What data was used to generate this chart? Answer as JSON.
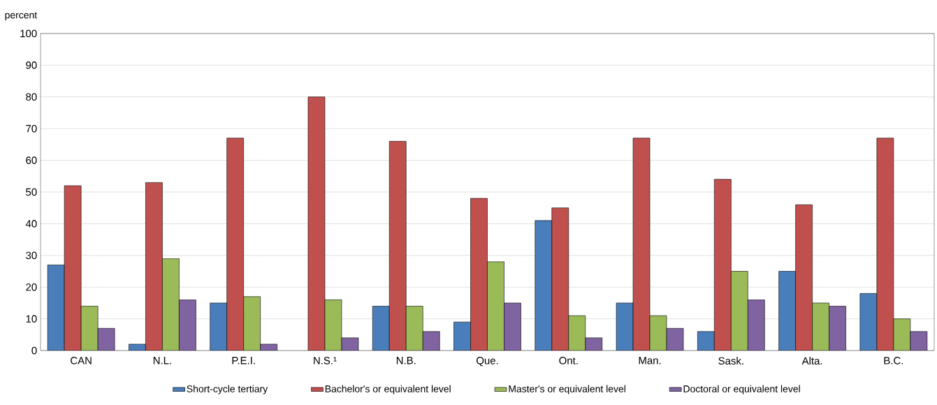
{
  "chart_data": {
    "type": "bar",
    "ylabel": "percent",
    "categories": [
      "CAN",
      "N.L.",
      "P.E.I.",
      "N.S.¹",
      "N.B.",
      "Que.",
      "Ont.",
      "Man.",
      "Sask.",
      "Alta.",
      "B.C."
    ],
    "series": [
      {
        "name": "Short-cycle tertiary",
        "color": "#4a7ebb",
        "values": [
          27,
          2,
          15,
          null,
          14,
          9,
          41,
          15,
          6,
          25,
          18
        ]
      },
      {
        "name": "Bachelor's or equivalent level",
        "color": "#c0504d",
        "values": [
          52,
          53,
          67,
          80,
          66,
          48,
          45,
          67,
          54,
          46,
          67
        ]
      },
      {
        "name": "Master's or equivalent level",
        "color": "#9bbb59",
        "values": [
          14,
          29,
          17,
          16,
          14,
          28,
          11,
          11,
          25,
          15,
          10
        ]
      },
      {
        "name": "Doctoral or equivalent level",
        "color": "#8064a2",
        "values": [
          7,
          16,
          2,
          4,
          6,
          15,
          4,
          7,
          16,
          14,
          6
        ]
      }
    ],
    "ylim": [
      0,
      100
    ],
    "yticks": [
      0,
      10,
      20,
      30,
      40,
      50,
      60,
      70,
      80,
      90,
      100
    ],
    "grid": "y",
    "legend": "bottom"
  }
}
